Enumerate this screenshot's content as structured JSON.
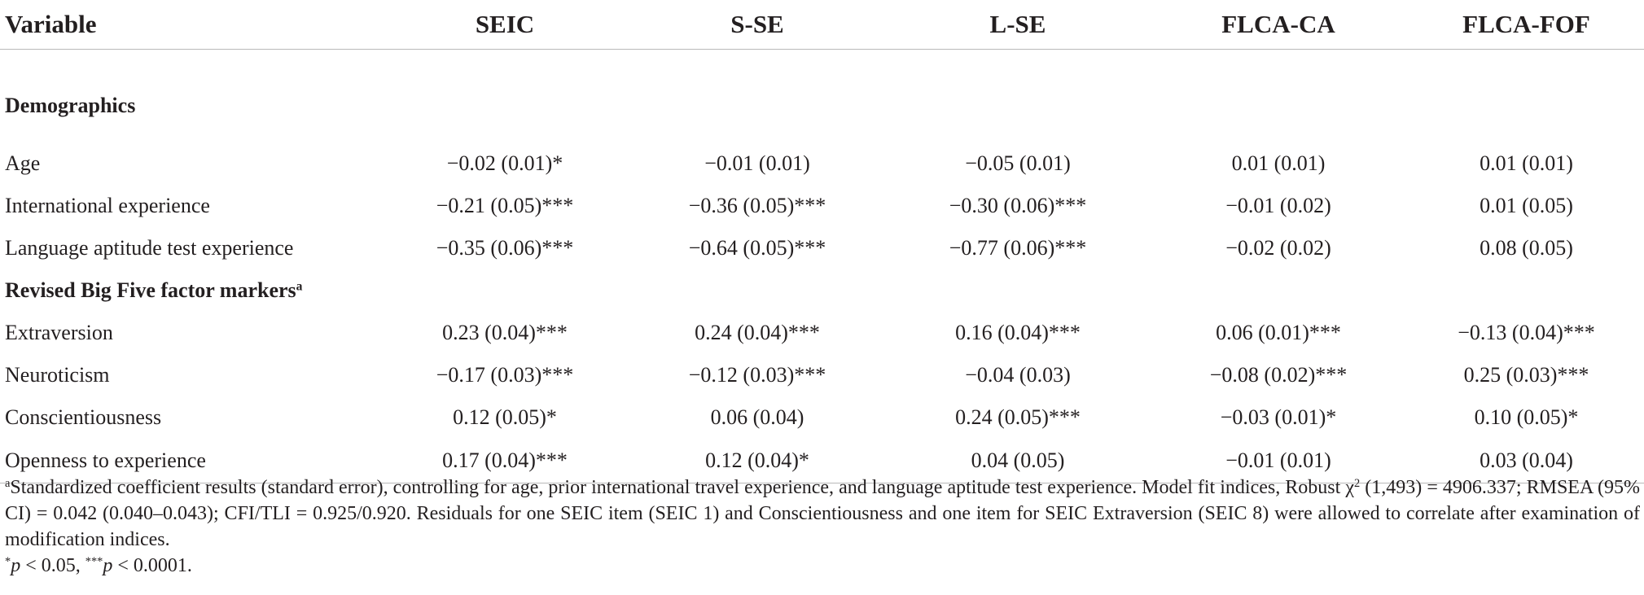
{
  "table": {
    "headers": [
      "Variable",
      "SEIC",
      "S-SE",
      "L-SE",
      "FLCA-CA",
      "FLCA-FOF"
    ],
    "sections": [
      {
        "title": "Demographics",
        "title_sup": "",
        "rows": [
          {
            "label": "Age",
            "values": [
              "−0.02 (0.01)*",
              "−0.01 (0.01)",
              "−0.05 (0.01)",
              "0.01 (0.01)",
              "0.01 (0.01)"
            ]
          },
          {
            "label": "International experience",
            "values": [
              "−0.21 (0.05)***",
              "−0.36 (0.05)***",
              "−0.30 (0.06)***",
              "−0.01 (0.02)",
              "0.01 (0.05)"
            ]
          },
          {
            "label": "Language aptitude test experience",
            "values": [
              "−0.35 (0.06)***",
              "−0.64 (0.05)***",
              "−0.77 (0.06)***",
              "−0.02 (0.02)",
              "0.08 (0.05)"
            ]
          }
        ]
      },
      {
        "title": "Revised Big Five factor markers",
        "title_sup": "a",
        "rows": [
          {
            "label": "Extraversion",
            "values": [
              "0.23 (0.04)***",
              "0.24 (0.04)***",
              "0.16 (0.04)***",
              "0.06 (0.01)***",
              "−0.13 (0.04)***"
            ]
          },
          {
            "label": "Neuroticism",
            "values": [
              "−0.17 (0.03)***",
              "−0.12 (0.03)***",
              "−0.04 (0.03)",
              "−0.08 (0.02)***",
              "0.25 (0.03)***"
            ]
          },
          {
            "label": "Conscientiousness",
            "values": [
              "0.12 (0.05)*",
              "0.06 (0.04)",
              "0.24 (0.05)***",
              "−0.03 (0.01)*",
              "0.10 (0.05)*"
            ]
          },
          {
            "label": "Openness to experience",
            "values": [
              "0.17 (0.04)***",
              "0.12 (0.04)*",
              "0.04 (0.05)",
              "−0.01 (0.01)",
              "0.03 (0.04)"
            ]
          }
        ]
      }
    ]
  },
  "footnotes": {
    "note_a_marker": "a",
    "note_a_part1": "Standardized coefficient results (standard error), controlling for age, prior international travel experience, and language aptitude test experience. Model fit indices, Robust χ",
    "note_a_chi_sup": "2",
    "note_a_part2": "(1,493) = 4906.337; RMSEA (95% CI) = 0.042 (0.040–0.043); CFI/TLI = 0.925/0.920. Residuals for one SEIC item (SEIC 1) and Conscientiousness and one item for SEIC Extraversion (SEIC 8) were allowed to correlate after examination of modification indices.",
    "sig_star": "*",
    "sig_p1": "p",
    "sig_text1": " < 0.05, ",
    "sig_stars3": "***",
    "sig_p2": "p",
    "sig_text2": " < 0.0001."
  }
}
